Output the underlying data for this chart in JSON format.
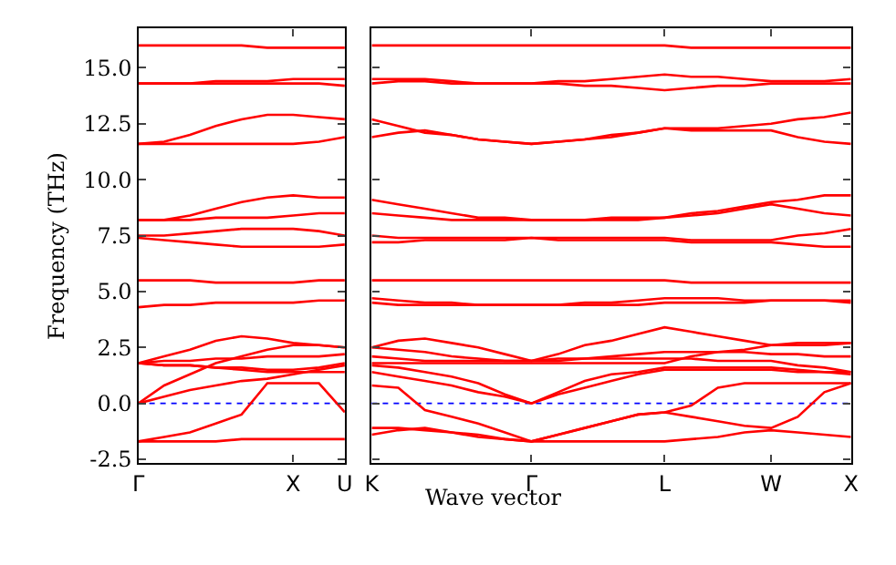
{
  "chart_data": [
    {
      "type": "line",
      "ylabel": "Frequency (THz)",
      "categories": [
        "Γ",
        null,
        null,
        null,
        null,
        null,
        "X",
        null,
        "U"
      ],
      "ylim": [
        -2.65,
        16.75
      ],
      "yticks": [
        -2.5,
        {
          "value": 0,
          "label": "0.0"
        },
        2.5,
        {
          "value": 5,
          "label": "5.0"
        },
        7.5,
        {
          "value": 10,
          "label": "10.0"
        },
        12.5,
        {
          "value": 15,
          "label": "15.0"
        }
      ],
      "grid": false,
      "marker": "none",
      "line_style": "solid",
      "ref_lines": [
        {
          "axis": "y",
          "value": 0,
          "color": "#0000ff",
          "line_style": "dotted"
        }
      ],
      "series": [
        {
          "color": "#ff0000",
          "values": [
            -1.7,
            -1.7,
            -1.7,
            -1.7,
            -1.6,
            -1.6,
            -1.6,
            -1.6,
            -1.6
          ]
        },
        {
          "color": "#ff0000",
          "values": [
            -1.7,
            -1.5,
            -1.3,
            -0.9,
            -0.5,
            0.9,
            0.9,
            0.9,
            -0.4
          ]
        },
        {
          "color": "#ff0000",
          "values": [
            0,
            0.3,
            0.6,
            0.8,
            1.0,
            1.1,
            1.3,
            1.5,
            1.7
          ]
        },
        {
          "color": "#ff0000",
          "values": [
            0,
            0.8,
            1.3,
            1.8,
            2.1,
            2.4,
            2.6,
            2.6,
            2.5
          ]
        },
        {
          "color": "#ff0000",
          "values": [
            1.8,
            2.1,
            2.4,
            2.8,
            3.0,
            2.9,
            2.7,
            2.6,
            2.5
          ]
        },
        {
          "color": "#ff0000",
          "values": [
            1.8,
            1.9,
            1.9,
            2.0,
            2.0,
            2.1,
            2.1,
            2.1,
            2.2
          ]
        },
        {
          "color": "#ff0000",
          "values": [
            1.8,
            1.7,
            1.7,
            1.6,
            1.5,
            1.4,
            1.4,
            1.4,
            1.4
          ]
        },
        {
          "color": "#ff0000",
          "values": [
            1.8,
            1.7,
            1.7,
            1.6,
            1.6,
            1.5,
            1.5,
            1.6,
            1.8
          ]
        },
        {
          "color": "#ff0000",
          "values": [
            4.3,
            4.4,
            4.4,
            4.5,
            4.5,
            4.5,
            4.5,
            4.6,
            4.6
          ]
        },
        {
          "color": "#ff0000",
          "values": [
            5.5,
            5.5,
            5.5,
            5.4,
            5.4,
            5.4,
            5.4,
            5.5,
            5.5
          ]
        },
        {
          "color": "#ff0000",
          "values": [
            7.5,
            7.5,
            7.6,
            7.7,
            7.8,
            7.8,
            7.8,
            7.7,
            7.5
          ]
        },
        {
          "color": "#ff0000",
          "values": [
            7.4,
            7.3,
            7.2,
            7.1,
            7.0,
            7.0,
            7.0,
            7.0,
            7.1
          ]
        },
        {
          "color": "#ff0000",
          "values": [
            8.2,
            8.2,
            8.2,
            8.3,
            8.3,
            8.3,
            8.4,
            8.5,
            8.5
          ]
        },
        {
          "color": "#ff0000",
          "values": [
            8.2,
            8.2,
            8.4,
            8.7,
            9.0,
            9.2,
            9.3,
            9.2,
            9.2
          ]
        },
        {
          "color": "#ff0000",
          "values": [
            11.6,
            11.6,
            11.6,
            11.6,
            11.6,
            11.6,
            11.6,
            11.7,
            11.9
          ]
        },
        {
          "color": "#ff0000",
          "values": [
            11.6,
            11.7,
            12.0,
            12.4,
            12.7,
            12.9,
            12.9,
            12.8,
            12.7
          ]
        },
        {
          "color": "#ff0000",
          "values": [
            14.3,
            14.3,
            14.3,
            14.4,
            14.4,
            14.4,
            14.5,
            14.5,
            14.5
          ]
        },
        {
          "color": "#ff0000",
          "values": [
            14.3,
            14.3,
            14.3,
            14.3,
            14.3,
            14.3,
            14.3,
            14.3,
            14.2
          ]
        },
        {
          "color": "#ff0000",
          "values": [
            16.0,
            16.0,
            16.0,
            16.0,
            16.0,
            15.9,
            15.9,
            15.9,
            15.9
          ]
        }
      ]
    },
    {
      "type": "line",
      "xlabel": "Wave vector",
      "categories": [
        "K",
        null,
        null,
        null,
        null,
        null,
        "Γ",
        null,
        null,
        null,
        null,
        "L",
        null,
        null,
        null,
        "W",
        null,
        null,
        "X"
      ],
      "ylim": [
        -2.65,
        16.75
      ],
      "yticks": [
        {
          "value": -2.5,
          "label": null
        },
        {
          "value": 0,
          "label": null
        },
        {
          "value": 2.5,
          "label": null
        },
        {
          "value": 5,
          "label": null
        },
        {
          "value": 7.5,
          "label": null
        },
        {
          "value": 10,
          "label": null
        },
        {
          "value": 12.5,
          "label": null
        },
        {
          "value": 15,
          "label": null
        }
      ],
      "tick_labels": "x",
      "grid": false,
      "marker": "none",
      "line_style": "solid",
      "ref_lines": [
        {
          "axis": "y",
          "value": 0,
          "color": "#0000ff",
          "line_style": "dotted"
        }
      ],
      "series": [
        {
          "color": "#ff0000",
          "values": [
            -1.4,
            -1.2,
            -1.1,
            -1.3,
            -1.5,
            -1.6,
            -1.7,
            -1.7,
            -1.7,
            -1.7,
            -1.7,
            -1.7,
            -1.6,
            -1.5,
            -1.3,
            -1.2,
            -1.3,
            -1.4,
            -1.5
          ]
        },
        {
          "color": "#ff0000",
          "values": [
            0.8,
            0.7,
            -0.3,
            -0.6,
            -0.9,
            -1.3,
            -1.7,
            -1.4,
            -1.1,
            -0.8,
            -0.5,
            -0.4,
            -0.1,
            0.7,
            0.9,
            0.9,
            0.9,
            0.9,
            0.9
          ]
        },
        {
          "color": "#ff0000",
          "values": [
            -1.1,
            -1.1,
            -1.2,
            -1.3,
            -1.4,
            -1.6,
            -1.7,
            -1.4,
            -1.1,
            -0.8,
            -0.5,
            -0.4,
            -0.6,
            -0.8,
            -1.0,
            -1.1,
            -0.6,
            0.5,
            0.9
          ]
        },
        {
          "color": "#ff0000",
          "values": [
            1.4,
            1.2,
            1.0,
            0.8,
            0.5,
            0.3,
            0,
            0.4,
            0.7,
            1.0,
            1.3,
            1.5,
            1.5,
            1.5,
            1.5,
            1.5,
            1.4,
            1.4,
            1.3
          ]
        },
        {
          "color": "#ff0000",
          "values": [
            1.7,
            1.6,
            1.4,
            1.2,
            0.9,
            0.4,
            0,
            0.5,
            1.0,
            1.3,
            1.4,
            1.6,
            1.6,
            1.6,
            1.6,
            1.6,
            1.5,
            1.4,
            1.4
          ]
        },
        {
          "color": "#ff0000",
          "values": [
            2.1,
            2.0,
            1.9,
            1.9,
            1.9,
            1.9,
            1.9,
            2.0,
            2.0,
            2.1,
            2.2,
            2.3,
            2.3,
            2.3,
            2.3,
            2.2,
            2.2,
            2.1,
            2.1
          ]
        },
        {
          "color": "#ff0000",
          "values": [
            2.5,
            2.4,
            2.3,
            2.1,
            2.0,
            1.9,
            1.9,
            1.9,
            2.0,
            2.0,
            2.0,
            2.0,
            2.0,
            1.9,
            1.9,
            1.9,
            1.7,
            1.6,
            1.4
          ]
        },
        {
          "color": "#ff0000",
          "values": [
            2.5,
            2.8,
            2.9,
            2.7,
            2.5,
            2.2,
            1.9,
            2.2,
            2.6,
            2.8,
            3.1,
            3.4,
            3.2,
            3.0,
            2.8,
            2.6,
            2.6,
            2.6,
            2.7
          ]
        },
        {
          "color": "#ff0000",
          "values": [
            1.8,
            1.8,
            1.8,
            1.8,
            1.8,
            1.8,
            1.8,
            1.8,
            1.8,
            1.8,
            1.8,
            1.8,
            2.1,
            2.3,
            2.4,
            2.6,
            2.7,
            2.7,
            2.7
          ]
        },
        {
          "color": "#ff0000",
          "values": [
            4.7,
            4.6,
            4.5,
            4.5,
            4.4,
            4.4,
            4.4,
            4.4,
            4.5,
            4.5,
            4.6,
            4.7,
            4.7,
            4.7,
            4.6,
            4.6,
            4.6,
            4.6,
            4.6
          ]
        },
        {
          "color": "#ff0000",
          "values": [
            4.5,
            4.4,
            4.4,
            4.4,
            4.4,
            4.4,
            4.4,
            4.4,
            4.4,
            4.4,
            4.4,
            4.5,
            4.5,
            4.5,
            4.5,
            4.6,
            4.6,
            4.6,
            4.5
          ]
        },
        {
          "color": "#ff0000",
          "values": [
            5.5,
            5.5,
            5.5,
            5.5,
            5.5,
            5.5,
            5.5,
            5.5,
            5.5,
            5.5,
            5.5,
            5.5,
            5.4,
            5.4,
            5.4,
            5.4,
            5.4,
            5.4,
            5.4
          ]
        },
        {
          "color": "#ff0000",
          "values": [
            7.5,
            7.4,
            7.4,
            7.4,
            7.4,
            7.4,
            7.4,
            7.4,
            7.4,
            7.4,
            7.4,
            7.4,
            7.3,
            7.3,
            7.3,
            7.3,
            7.5,
            7.6,
            7.8
          ]
        },
        {
          "color": "#ff0000",
          "values": [
            7.2,
            7.2,
            7.3,
            7.3,
            7.3,
            7.3,
            7.4,
            7.3,
            7.3,
            7.3,
            7.3,
            7.3,
            7.2,
            7.2,
            7.2,
            7.2,
            7.1,
            7.0,
            7.0
          ]
        },
        {
          "color": "#ff0000",
          "values": [
            8.5,
            8.4,
            8.3,
            8.2,
            8.2,
            8.2,
            8.2,
            8.2,
            8.2,
            8.3,
            8.3,
            8.3,
            8.5,
            8.6,
            8.8,
            9.0,
            9.1,
            9.3,
            9.3
          ]
        },
        {
          "color": "#ff0000",
          "values": [
            9.1,
            8.9,
            8.7,
            8.5,
            8.3,
            8.3,
            8.2,
            8.2,
            8.2,
            8.2,
            8.2,
            8.3,
            8.4,
            8.5,
            8.7,
            8.9,
            8.7,
            8.5,
            8.4
          ]
        },
        {
          "color": "#ff0000",
          "values": [
            12.7,
            12.4,
            12.1,
            12.0,
            11.8,
            11.7,
            11.6,
            11.7,
            11.8,
            12.0,
            12.1,
            12.3,
            12.3,
            12.3,
            12.4,
            12.5,
            12.7,
            12.8,
            13.0
          ]
        },
        {
          "color": "#ff0000",
          "values": [
            11.9,
            12.1,
            12.2,
            12.0,
            11.8,
            11.7,
            11.6,
            11.7,
            11.8,
            11.9,
            12.1,
            12.3,
            12.2,
            12.2,
            12.2,
            12.2,
            11.9,
            11.7,
            11.6
          ]
        },
        {
          "color": "#ff0000",
          "values": [
            14.5,
            14.5,
            14.5,
            14.4,
            14.3,
            14.3,
            14.3,
            14.4,
            14.4,
            14.5,
            14.6,
            14.7,
            14.6,
            14.6,
            14.5,
            14.4,
            14.4,
            14.4,
            14.5
          ]
        },
        {
          "color": "#ff0000",
          "values": [
            14.3,
            14.4,
            14.4,
            14.3,
            14.3,
            14.3,
            14.3,
            14.3,
            14.2,
            14.2,
            14.1,
            14.0,
            14.1,
            14.2,
            14.2,
            14.3,
            14.3,
            14.3,
            14.3
          ]
        },
        {
          "color": "#ff0000",
          "values": [
            16.0,
            16.0,
            16.0,
            16.0,
            16.0,
            16.0,
            16.0,
            16.0,
            16.0,
            16.0,
            16.0,
            16.0,
            15.9,
            15.9,
            15.9,
            15.9,
            15.9,
            15.9,
            15.9
          ]
        }
      ]
    }
  ]
}
